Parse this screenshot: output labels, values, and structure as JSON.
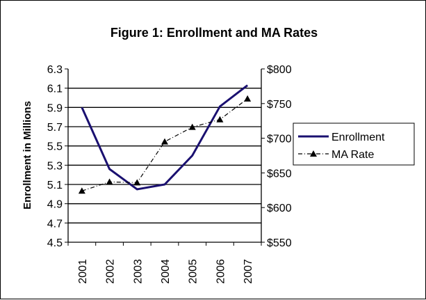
{
  "chart_data": {
    "type": "line",
    "title": "Figure 1:  Enrollment and MA Rates",
    "ylabel": "Enrollment in Millions",
    "xlabel": "",
    "categories": [
      "2001",
      "2002",
      "2003",
      "2004",
      "2005",
      "2006",
      "2007"
    ],
    "ylim": [
      4.5,
      6.3
    ],
    "y_ticks": [
      "6.3",
      "6.1",
      "5.9",
      "5.7",
      "5.5",
      "5.3",
      "5.1",
      "4.9",
      "4.7",
      "4.5"
    ],
    "y2lim": [
      550,
      800
    ],
    "y2_ticks": [
      "$800",
      "$750",
      "$700",
      "$650",
      "$600",
      "$550"
    ],
    "grid": true,
    "legend": "right",
    "series": [
      {
        "name": "Enrollment",
        "axis": "left",
        "color": "#1a1070",
        "style": "solid",
        "values": [
          5.9,
          5.26,
          5.05,
          5.1,
          5.4,
          5.91,
          6.13
        ]
      },
      {
        "name": "MA Rate",
        "axis": "right",
        "color": "#000000",
        "style": "dash-dot",
        "marker": "triangle",
        "values": [
          624,
          637,
          636,
          695,
          716,
          727,
          757
        ]
      }
    ]
  }
}
